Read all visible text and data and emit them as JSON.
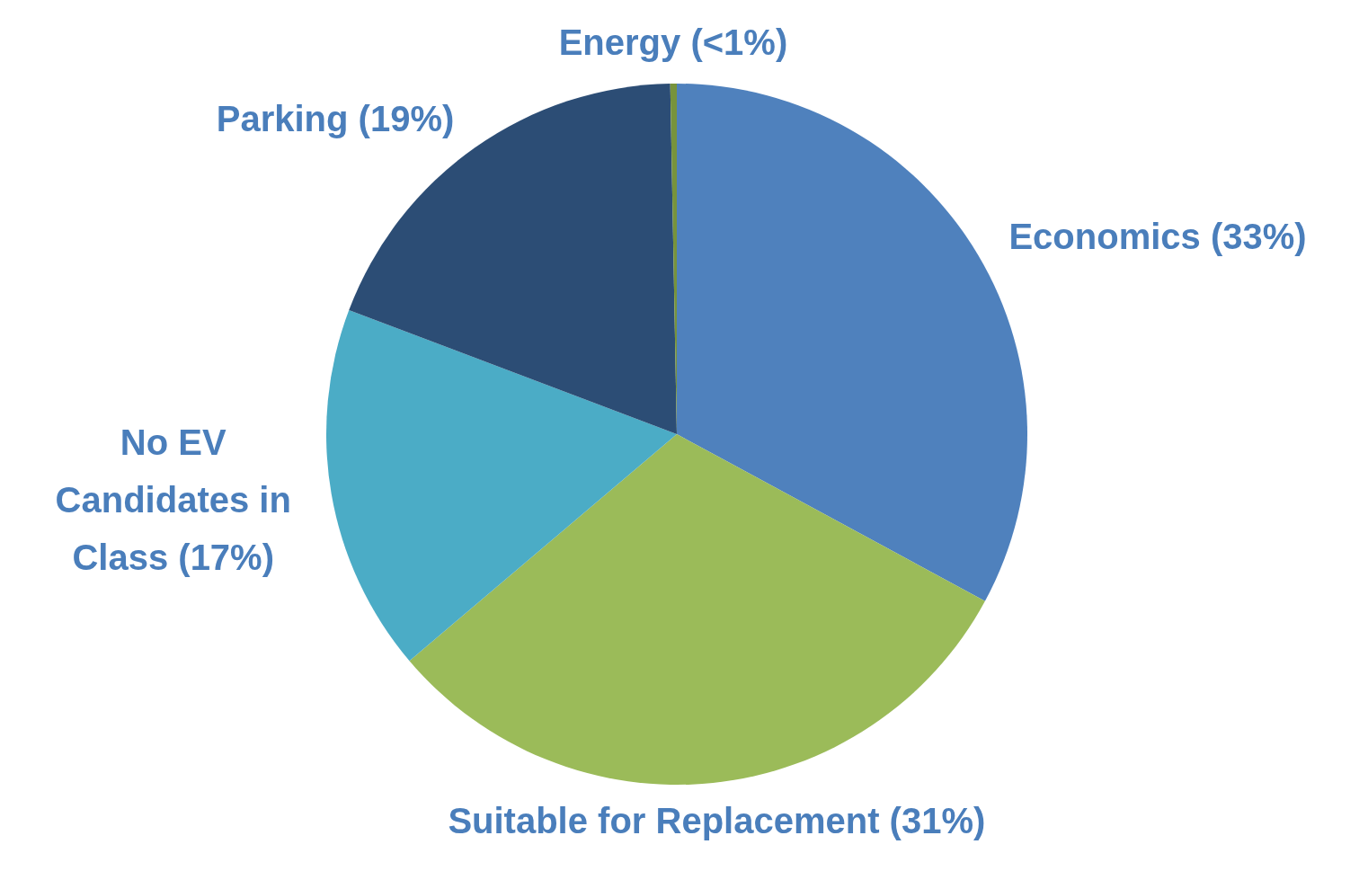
{
  "chart_data": {
    "type": "pie",
    "categories": [
      "Economics (33%)",
      "Suitable for Replacement (31%)",
      "No EV Candidates in Class (17%)",
      "Parking (19%)",
      "Energy (<1%)"
    ],
    "values": [
      33,
      31,
      17,
      19,
      0.3
    ],
    "colors": [
      "#4f81bd",
      "#9bbb59",
      "#4bacc6",
      "#2c4d75",
      "#77933c"
    ],
    "legend": false
  }
}
